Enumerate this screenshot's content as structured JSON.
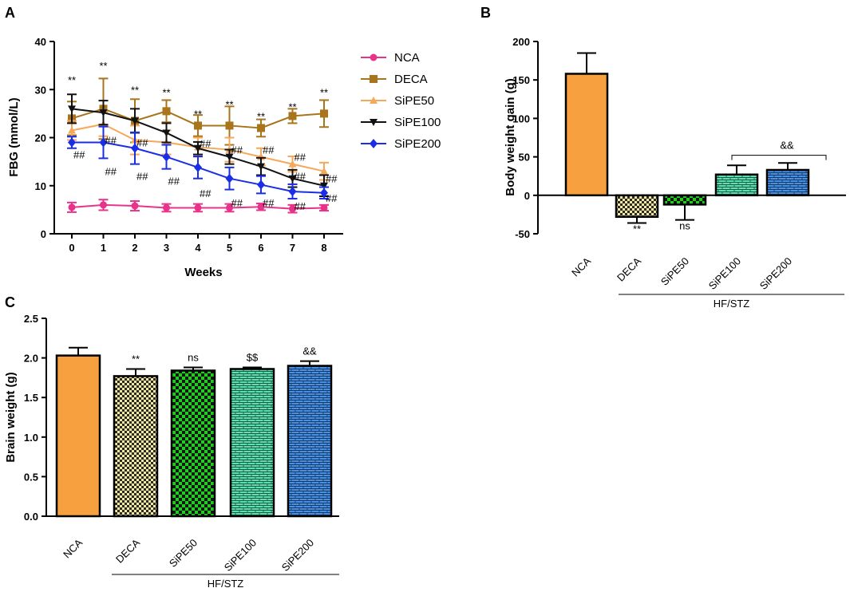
{
  "panel_letters": [
    "A",
    "B",
    "C"
  ],
  "chart_data": [
    {
      "id": "A",
      "type": "line",
      "title": "",
      "xlabel": "Weeks",
      "ylabel": "FBG (mmol/L)",
      "x": [
        0,
        1,
        2,
        3,
        4,
        5,
        6,
        7,
        8
      ],
      "xticks": [
        "0",
        "1",
        "2",
        "3",
        "4",
        "5",
        "6",
        "7",
        "8"
      ],
      "ylim": [
        0,
        40
      ],
      "yticks": [
        0,
        10,
        20,
        30,
        40
      ],
      "ytick_labels": [
        "0",
        "10",
        "20",
        "30",
        "40"
      ],
      "legend_position": "right",
      "series": [
        {
          "name": "NCA",
          "color": "#e8338a",
          "marker": "circle",
          "values": [
            5.5,
            6.0,
            5.8,
            5.4,
            5.4,
            5.4,
            5.6,
            5.2,
            5.4
          ],
          "errors": [
            1.0,
            1.1,
            1.0,
            0.8,
            0.8,
            0.8,
            0.7,
            0.8,
            0.6
          ]
        },
        {
          "name": "DECA",
          "color": "#a8741c",
          "marker": "square",
          "values": [
            24.0,
            26.0,
            23.5,
            25.5,
            22.5,
            22.5,
            22.0,
            24.5,
            25.0
          ],
          "errors": [
            3.5,
            6.3,
            4.5,
            2.3,
            2.2,
            4.0,
            1.8,
            1.5,
            2.8
          ]
        },
        {
          "name": "SiPE50",
          "color": "#f5a85a",
          "marker": "triangle-up",
          "values": [
            21.5,
            22.8,
            19.5,
            19.0,
            18.0,
            17.5,
            16.0,
            14.5,
            13.0
          ],
          "errors": [
            2.0,
            2.5,
            3.0,
            2.5,
            2.0,
            2.5,
            1.8,
            1.6,
            1.8
          ]
        },
        {
          "name": "SiPE100",
          "color": "#111111",
          "marker": "triangle-down",
          "values": [
            26.0,
            25.2,
            23.5,
            21.0,
            17.8,
            16.0,
            14.0,
            11.5,
            10.0
          ],
          "errors": [
            3.0,
            2.5,
            2.5,
            2.0,
            1.3,
            1.5,
            1.8,
            1.8,
            2.2
          ]
        },
        {
          "name": "SiPE200",
          "color": "#1a2ee6",
          "marker": "diamond",
          "values": [
            19.0,
            19.0,
            17.8,
            16.0,
            13.8,
            11.5,
            10.2,
            8.8,
            8.5
          ],
          "errors": [
            1.2,
            3.3,
            3.3,
            2.5,
            2.3,
            2.3,
            1.8,
            1.5,
            1.2
          ]
        }
      ],
      "annotations": {
        "top_marks": [
          "**",
          "**",
          "**",
          "**",
          "**",
          "**",
          "**",
          "**",
          "**"
        ],
        "top_marks_y": [
          32,
          35,
          30,
          29.5,
          25,
          27,
          24.5,
          26.5,
          29.5
        ],
        "hash_marks": [
          {
            "x": 0,
            "y": 16.5,
            "text": "##"
          },
          {
            "x": 1,
            "y": 19.5,
            "text": "##"
          },
          {
            "x": 1,
            "y": 13.0,
            "text": "##"
          },
          {
            "x": 2,
            "y": 19.0,
            "text": "##"
          },
          {
            "x": 2,
            "y": 12.0,
            "text": "##"
          },
          {
            "x": 3,
            "y": 11.0,
            "text": "##"
          },
          {
            "x": 4,
            "y": 18.8,
            "text": "##"
          },
          {
            "x": 4,
            "y": 8.5,
            "text": "##"
          },
          {
            "x": 5,
            "y": 17.5,
            "text": "##"
          },
          {
            "x": 5,
            "y": 6.5,
            "text": "##"
          },
          {
            "x": 6,
            "y": 17.5,
            "text": "##"
          },
          {
            "x": 6,
            "y": 6.5,
            "text": "##"
          },
          {
            "x": 7,
            "y": 16.0,
            "text": "##"
          },
          {
            "x": 7,
            "y": 12.0,
            "text": "##"
          },
          {
            "x": 7,
            "y": 5.8,
            "text": "##"
          },
          {
            "x": 8,
            "y": 11.5,
            "text": "##"
          },
          {
            "x": 8,
            "y": 7.5,
            "text": "##"
          }
        ]
      }
    },
    {
      "id": "B",
      "type": "bar",
      "title": "",
      "xlabel": "",
      "ylabel": "Body weight gain (g)",
      "categories": [
        "NCA",
        "DECA",
        "SiPE50",
        "SiPE100",
        "SiPE200"
      ],
      "values": [
        158,
        -28,
        -12,
        27,
        33
      ],
      "errors": [
        27,
        8,
        20,
        12,
        9
      ],
      "colors": [
        "#f7a040",
        "#f3e8a0",
        "#22cc22",
        "#5de0b0",
        "#4a90e2"
      ],
      "patterns": [
        "solid",
        "checker-small",
        "checker",
        "brick",
        "brick"
      ],
      "ylim": [
        -50,
        200
      ],
      "yticks": [
        -50,
        0,
        50,
        100,
        150,
        200
      ],
      "ytick_labels": [
        "-50",
        "0",
        "50",
        "100",
        "150",
        "200"
      ],
      "group_label": "HF/STZ",
      "sig_labels": [
        "",
        "**",
        "ns",
        "",
        ""
      ],
      "bracket_label": "&&"
    },
    {
      "id": "C",
      "type": "bar",
      "title": "",
      "xlabel": "",
      "ylabel": "Brain weight (g)",
      "categories": [
        "NCA",
        "DECA",
        "SiPE50",
        "SiPE100",
        "SiPE200"
      ],
      "values": [
        2.03,
        1.77,
        1.84,
        1.86,
        1.9
      ],
      "errors": [
        0.1,
        0.09,
        0.04,
        0.02,
        0.06
      ],
      "colors": [
        "#f7a040",
        "#f3e8a0",
        "#22cc22",
        "#5de0b0",
        "#4a90e2"
      ],
      "patterns": [
        "solid",
        "checker-small",
        "checker",
        "brick",
        "brick"
      ],
      "ylim": [
        0,
        2.5
      ],
      "yticks": [
        0,
        0.5,
        1.0,
        1.5,
        2.0,
        2.5
      ],
      "ytick_labels": [
        "0.0",
        "0.5",
        "1.0",
        "1.5",
        "2.0",
        "2.5"
      ],
      "group_label": "HF/STZ",
      "sig_labels": [
        "",
        "**",
        "ns",
        "$$",
        "&&"
      ]
    }
  ]
}
